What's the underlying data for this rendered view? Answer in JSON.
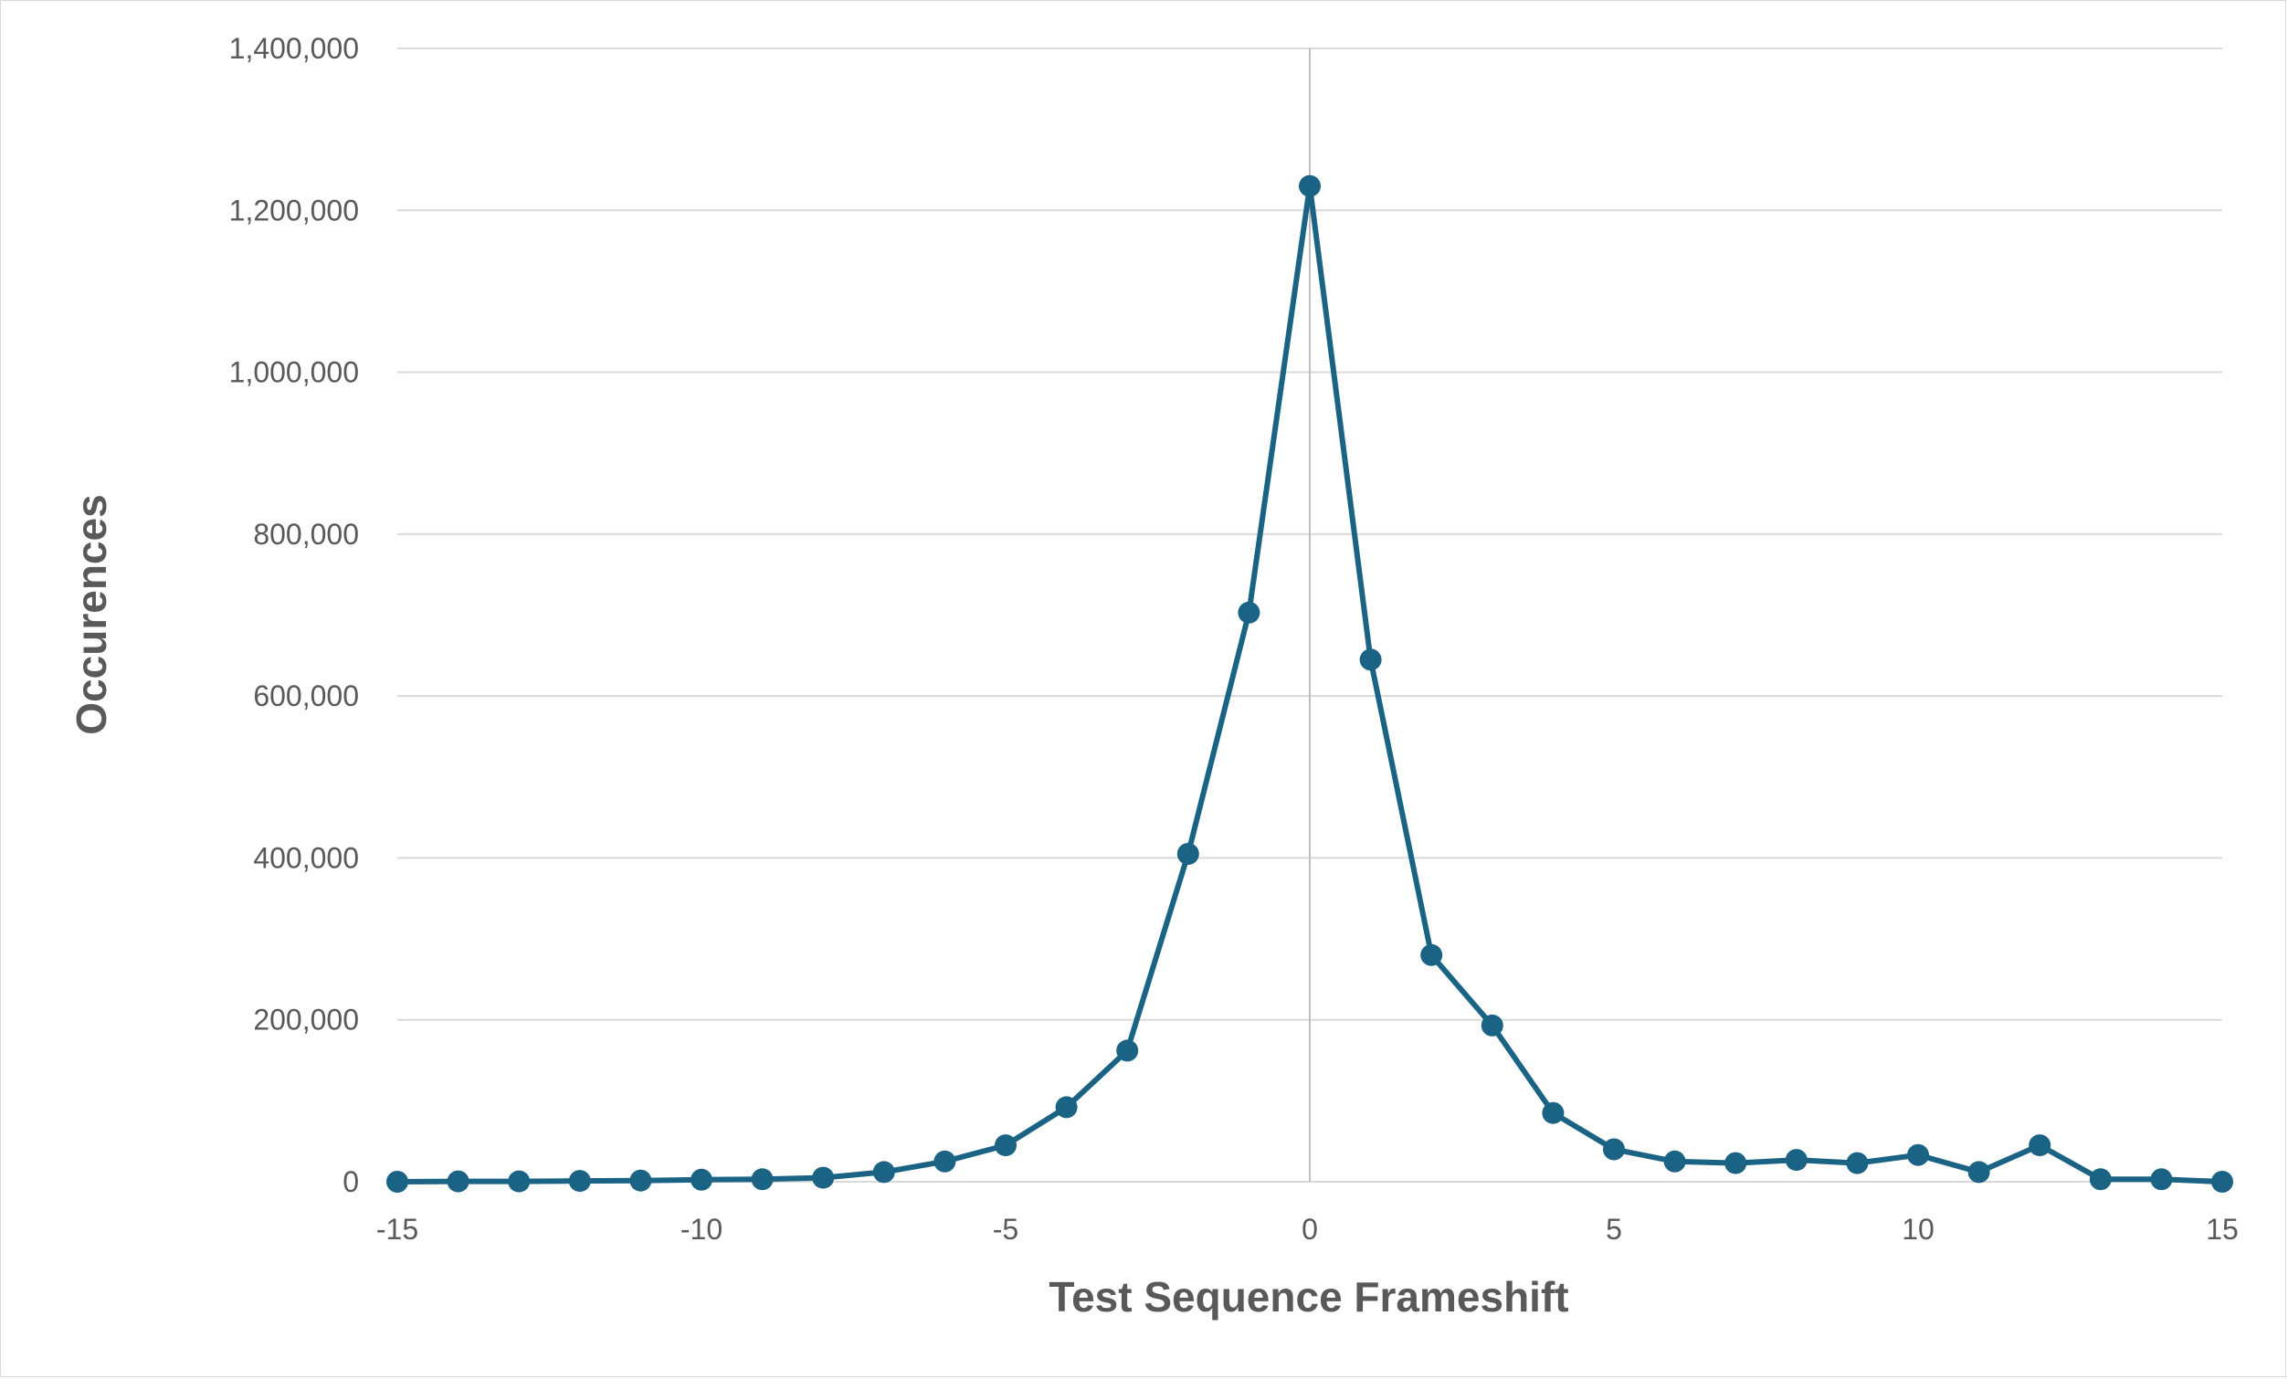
{
  "chart_data": {
    "type": "line",
    "title": "",
    "xlabel": "Test Sequence Frameshift",
    "ylabel": "Occurences",
    "xlim": [
      -15,
      15
    ],
    "ylim": [
      0,
      1400000
    ],
    "x_ticks": [
      -15,
      -10,
      -5,
      0,
      5,
      10,
      15
    ],
    "x_tick_labels": [
      "-15",
      "-10",
      "-5",
      "0",
      "5",
      "10",
      "15"
    ],
    "y_ticks": [
      0,
      200000,
      400000,
      600000,
      800000,
      1000000,
      1200000,
      1400000
    ],
    "y_tick_labels": [
      "0",
      "200,000",
      "400,000",
      "600,000",
      "800,000",
      "1,000,000",
      "1,200,000",
      "1,400,000"
    ],
    "grid": true,
    "legend": "none",
    "series": [
      {
        "color": "#1a6384",
        "x": [
          -15,
          -14,
          -13,
          -12,
          -11,
          -10,
          -9,
          -8,
          -7,
          -6,
          -5,
          -4,
          -3,
          -2,
          -1,
          0,
          1,
          2,
          3,
          4,
          5,
          6,
          7,
          8,
          9,
          10,
          11,
          12,
          13,
          14,
          15
        ],
        "y": [
          0,
          500,
          500,
          1000,
          1500,
          2500,
          3000,
          5000,
          12000,
          25000,
          45000,
          92000,
          162000,
          405000,
          703000,
          1230000,
          645000,
          280000,
          193000,
          85000,
          40000,
          25000,
          23000,
          27000,
          23000,
          33000,
          12000,
          45000,
          3000,
          3000,
          0
        ]
      }
    ]
  }
}
